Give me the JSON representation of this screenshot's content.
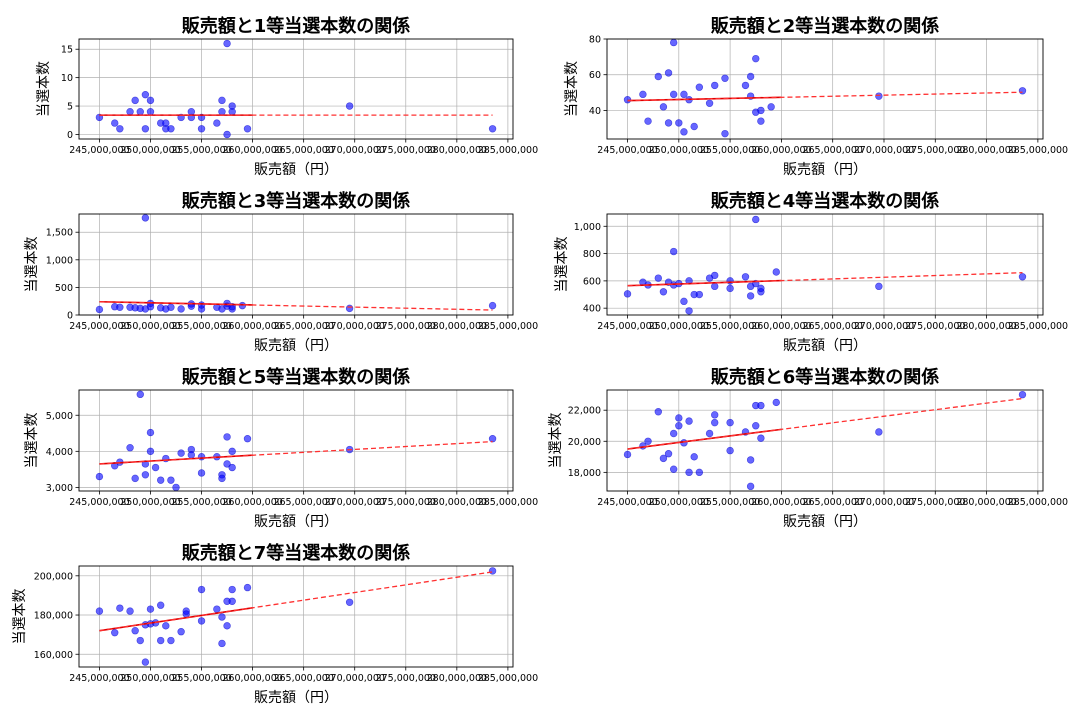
{
  "chart_data": [
    {
      "type": "scatter",
      "title": "販売額と1等当選本数の関係",
      "xlabel": "販売額（円）",
      "ylabel": "当選本数",
      "xlim": [
        243000000,
        285500000
      ],
      "ylim": [
        -0.8,
        16.8
      ],
      "yticks": [
        0,
        5,
        10,
        15
      ],
      "grid": true,
      "points": [
        [
          245000000,
          3
        ],
        [
          246500000,
          2
        ],
        [
          247000000,
          1
        ],
        [
          248000000,
          4
        ],
        [
          248500000,
          6
        ],
        [
          249000000,
          4
        ],
        [
          249500000,
          7
        ],
        [
          249500000,
          1
        ],
        [
          250000000,
          6
        ],
        [
          250000000,
          4
        ],
        [
          251000000,
          2
        ],
        [
          251500000,
          1
        ],
        [
          251500000,
          2
        ],
        [
          252000000,
          1
        ],
        [
          253000000,
          3
        ],
        [
          254000000,
          3
        ],
        [
          254000000,
          4
        ],
        [
          255000000,
          1
        ],
        [
          255000000,
          3
        ],
        [
          256500000,
          2
        ],
        [
          257000000,
          6
        ],
        [
          257000000,
          4
        ],
        [
          257500000,
          0
        ],
        [
          257500000,
          16
        ],
        [
          258000000,
          4
        ],
        [
          258000000,
          5
        ],
        [
          259500000,
          1
        ],
        [
          269500000,
          5
        ],
        [
          283500000,
          1
        ]
      ],
      "fit": {
        "x0": 245000000,
        "y0": 3.4,
        "x1": 283500000,
        "y1": 3.4
      }
    },
    {
      "type": "scatter",
      "title": "販売額と2等当選本数の関係",
      "xlabel": "販売額（円）",
      "ylabel": "当選本数",
      "xlim": [
        243000000,
        285500000
      ],
      "ylim": [
        24,
        80
      ],
      "yticks": [
        40,
        60,
        80
      ],
      "grid": true,
      "points": [
        [
          245000000,
          46
        ],
        [
          246500000,
          49
        ],
        [
          247000000,
          34
        ],
        [
          248000000,
          59
        ],
        [
          248500000,
          42
        ],
        [
          249000000,
          61
        ],
        [
          249000000,
          33
        ],
        [
          249500000,
          78
        ],
        [
          249500000,
          49
        ],
        [
          250000000,
          33
        ],
        [
          250500000,
          49
        ],
        [
          250500000,
          28
        ],
        [
          251000000,
          46
        ],
        [
          251500000,
          31
        ],
        [
          252000000,
          53
        ],
        [
          253000000,
          44
        ],
        [
          253500000,
          54
        ],
        [
          254500000,
          58
        ],
        [
          254500000,
          27
        ],
        [
          256500000,
          54
        ],
        [
          257000000,
          59
        ],
        [
          257000000,
          48
        ],
        [
          257500000,
          69
        ],
        [
          257500000,
          39
        ],
        [
          258000000,
          34
        ],
        [
          258000000,
          40
        ],
        [
          259000000,
          42
        ],
        [
          269500000,
          48
        ],
        [
          283500000,
          51
        ]
      ],
      "fit": {
        "x0": 245000000,
        "y0": 45.5,
        "x1": 283500000,
        "y1": 50.2
      }
    },
    {
      "type": "scatter",
      "title": "販売額と3等当選本数の関係",
      "xlabel": "販売額（円）",
      "ylabel": "当選本数",
      "xlim": [
        243000000,
        285500000
      ],
      "ylim": [
        0,
        1830
      ],
      "yticks": [
        0,
        500,
        1000,
        1500
      ],
      "grid": true,
      "points": [
        [
          245000000,
          100
        ],
        [
          246500000,
          150
        ],
        [
          247000000,
          140
        ],
        [
          248000000,
          140
        ],
        [
          248500000,
          130
        ],
        [
          249000000,
          120
        ],
        [
          249500000,
          1760
        ],
        [
          249500000,
          110
        ],
        [
          250000000,
          210
        ],
        [
          250000000,
          150
        ],
        [
          251000000,
          130
        ],
        [
          251500000,
          110
        ],
        [
          252000000,
          140
        ],
        [
          253000000,
          110
        ],
        [
          254000000,
          200
        ],
        [
          254000000,
          160
        ],
        [
          255000000,
          110
        ],
        [
          255000000,
          180
        ],
        [
          256500000,
          140
        ],
        [
          257000000,
          110
        ],
        [
          257500000,
          210
        ],
        [
          257500000,
          160
        ],
        [
          258000000,
          110
        ],
        [
          258000000,
          150
        ],
        [
          259000000,
          170
        ],
        [
          269500000,
          120
        ],
        [
          283500000,
          170
        ]
      ],
      "fit": {
        "x0": 245000000,
        "y0": 240,
        "x1": 283500000,
        "y1": 90
      }
    },
    {
      "type": "scatter",
      "title": "販売額と4等当選本数の関係",
      "xlabel": "販売額（円）",
      "ylabel": "当選本数",
      "xlim": [
        243000000,
        285500000
      ],
      "ylim": [
        350,
        1090
      ],
      "yticks": [
        400,
        600,
        800,
        1000
      ],
      "grid": true,
      "points": [
        [
          245000000,
          505
        ],
        [
          246500000,
          590
        ],
        [
          247000000,
          570
        ],
        [
          248000000,
          620
        ],
        [
          248500000,
          520
        ],
        [
          249000000,
          590
        ],
        [
          249500000,
          570
        ],
        [
          249500000,
          815
        ],
        [
          250000000,
          580
        ],
        [
          250500000,
          450
        ],
        [
          251000000,
          600
        ],
        [
          251000000,
          380
        ],
        [
          251500000,
          500
        ],
        [
          252000000,
          500
        ],
        [
          253000000,
          620
        ],
        [
          253500000,
          640
        ],
        [
          253500000,
          560
        ],
        [
          255000000,
          600
        ],
        [
          255000000,
          545
        ],
        [
          256500000,
          630
        ],
        [
          257000000,
          560
        ],
        [
          257000000,
          490
        ],
        [
          257500000,
          1050
        ],
        [
          257500000,
          580
        ],
        [
          258000000,
          520
        ],
        [
          258000000,
          545
        ],
        [
          259500000,
          665
        ],
        [
          269500000,
          560
        ],
        [
          283500000,
          630
        ]
      ],
      "fit": {
        "x0": 245000000,
        "y0": 565,
        "x1": 283500000,
        "y1": 660
      }
    },
    {
      "type": "scatter",
      "title": "販売額と5等当選本数の関係",
      "xlabel": "販売額（円）",
      "ylabel": "当選本数",
      "xlim": [
        243000000,
        285500000
      ],
      "ylim": [
        2900,
        5700
      ],
      "yticks": [
        3000,
        4000,
        5000
      ],
      "grid": true,
      "points": [
        [
          245000000,
          3300
        ],
        [
          246500000,
          3600
        ],
        [
          247000000,
          3700
        ],
        [
          248000000,
          4100
        ],
        [
          248500000,
          3250
        ],
        [
          249000000,
          5580
        ],
        [
          249500000,
          3350
        ],
        [
          249500000,
          3650
        ],
        [
          250000000,
          4520
        ],
        [
          250000000,
          4000
        ],
        [
          250500000,
          3550
        ],
        [
          251000000,
          3200
        ],
        [
          251500000,
          3800
        ],
        [
          252000000,
          3200
        ],
        [
          252500000,
          3000
        ],
        [
          253000000,
          3950
        ],
        [
          254000000,
          4050
        ],
        [
          254000000,
          3900
        ],
        [
          255000000,
          3400
        ],
        [
          255000000,
          3850
        ],
        [
          256500000,
          3850
        ],
        [
          257000000,
          3350
        ],
        [
          257000000,
          3250
        ],
        [
          257500000,
          4400
        ],
        [
          257500000,
          3650
        ],
        [
          258000000,
          3550
        ],
        [
          258000000,
          4000
        ],
        [
          259500000,
          4350
        ],
        [
          269500000,
          4050
        ],
        [
          283500000,
          4350
        ]
      ],
      "fit": {
        "x0": 245000000,
        "y0": 3650,
        "x1": 283500000,
        "y1": 4270
      }
    },
    {
      "type": "scatter",
      "title": "販売額と6等当選本数の関係",
      "xlabel": "販売額（円）",
      "ylabel": "当選本数",
      "xlim": [
        243000000,
        285500000
      ],
      "ylim": [
        16800,
        23300
      ],
      "yticks": [
        18000,
        20000,
        22000
      ],
      "grid": true,
      "points": [
        [
          245000000,
          19150
        ],
        [
          246500000,
          19700
        ],
        [
          247000000,
          20000
        ],
        [
          248000000,
          21900
        ],
        [
          248500000,
          18900
        ],
        [
          249000000,
          19200
        ],
        [
          249500000,
          18200
        ],
        [
          249500000,
          20500
        ],
        [
          250000000,
          21500
        ],
        [
          250000000,
          21000
        ],
        [
          250500000,
          19900
        ],
        [
          251000000,
          21300
        ],
        [
          251000000,
          18000
        ],
        [
          251500000,
          19000
        ],
        [
          252000000,
          18000
        ],
        [
          253000000,
          20500
        ],
        [
          253500000,
          21700
        ],
        [
          253500000,
          21200
        ],
        [
          255000000,
          19400
        ],
        [
          255000000,
          21200
        ],
        [
          256500000,
          20600
        ],
        [
          257000000,
          17100
        ],
        [
          257000000,
          18800
        ],
        [
          257500000,
          22300
        ],
        [
          257500000,
          21000
        ],
        [
          258000000,
          22300
        ],
        [
          258000000,
          20200
        ],
        [
          259500000,
          22500
        ],
        [
          269500000,
          20600
        ],
        [
          283500000,
          23000
        ]
      ],
      "fit": {
        "x0": 245000000,
        "y0": 19500,
        "x1": 283500000,
        "y1": 22750
      }
    },
    {
      "type": "scatter",
      "title": "販売額と7等当選本数の関係",
      "xlabel": "販売額（円）",
      "ylabel": "当選本数",
      "xlim": [
        243000000,
        285500000
      ],
      "ylim": [
        153500,
        205000
      ],
      "yticks": [
        160000,
        180000,
        200000
      ],
      "grid": true,
      "points": [
        [
          245000000,
          182000
        ],
        [
          246500000,
          171000
        ],
        [
          247000000,
          183500
        ],
        [
          248000000,
          182000
        ],
        [
          248500000,
          172000
        ],
        [
          249000000,
          167000
        ],
        [
          249500000,
          175000
        ],
        [
          249500000,
          156000
        ],
        [
          250000000,
          183000
        ],
        [
          250000000,
          175500
        ],
        [
          250500000,
          176000
        ],
        [
          251000000,
          185000
        ],
        [
          251000000,
          167000
        ],
        [
          251500000,
          174500
        ],
        [
          252000000,
          167000
        ],
        [
          253000000,
          171500
        ],
        [
          253500000,
          182000
        ],
        [
          253500000,
          180500
        ],
        [
          255000000,
          193000
        ],
        [
          255000000,
          177000
        ],
        [
          256500000,
          183000
        ],
        [
          257000000,
          179000
        ],
        [
          257000000,
          165500
        ],
        [
          257500000,
          187000
        ],
        [
          257500000,
          174500
        ],
        [
          258000000,
          193000
        ],
        [
          258000000,
          187000
        ],
        [
          259500000,
          194000
        ],
        [
          269500000,
          186500
        ],
        [
          283500000,
          202500
        ]
      ],
      "fit": {
        "x0": 245000000,
        "y0": 172000,
        "x1": 283500000,
        "y1": 202000
      }
    }
  ],
  "xticks": [
    245000000,
    250000000,
    255000000,
    260000000,
    265000000,
    270000000,
    275000000,
    280000000,
    285000000
  ],
  "xtick_labels": [
    "245,000,000",
    "250,000,000",
    "255,000,000",
    "260,000,000",
    "265,000,000",
    "270,000,000",
    "275,000,000",
    "280,000,000",
    "285,000,000"
  ],
  "colors": {
    "points": "#0000ff",
    "fit": "#e00000",
    "grid": "#b0b0b0"
  }
}
